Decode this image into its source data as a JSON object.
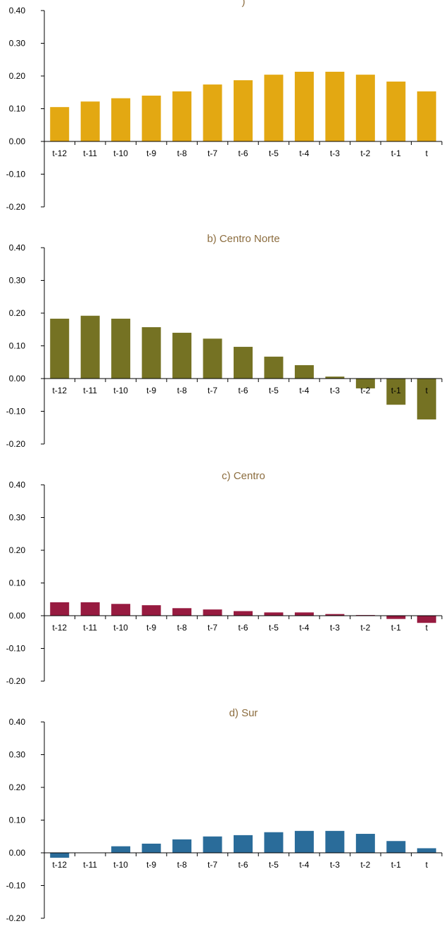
{
  "chart_data": [
    {
      "type": "bar",
      "title": ")",
      "color": "#E3A812",
      "categories": [
        "t-12",
        "t-11",
        "t-10",
        "t-9",
        "t-8",
        "t-7",
        "t-6",
        "t-5",
        "t-4",
        "t-3",
        "t-2",
        "t-1",
        "t"
      ],
      "values": [
        0.105,
        0.122,
        0.132,
        0.14,
        0.153,
        0.174,
        0.187,
        0.204,
        0.213,
        0.213,
        0.204,
        0.183,
        0.153
      ],
      "yticks": [
        "0.40",
        "0.30",
        "0.20",
        "0.10",
        "0.00",
        "-0.10",
        "-0.20"
      ],
      "ylim": [
        -0.2,
        0.4
      ],
      "xlabel": "",
      "ylabel": ""
    },
    {
      "type": "bar",
      "title": "b) Centro Norte",
      "color": "#757223",
      "categories": [
        "t-12",
        "t-11",
        "t-10",
        "t-9",
        "t-8",
        "t-7",
        "t-6",
        "t-5",
        "t-4",
        "t-3",
        "t-2",
        "t-1",
        "t"
      ],
      "values": [
        0.183,
        0.192,
        0.183,
        0.157,
        0.14,
        0.122,
        0.097,
        0.067,
        0.041,
        0.006,
        -0.03,
        -0.08,
        -0.125
      ],
      "yticks": [
        "0.40",
        "0.30",
        "0.20",
        "0.10",
        "0.00",
        "-0.10",
        "-0.20"
      ],
      "ylim": [
        -0.2,
        0.4
      ],
      "xlabel": "",
      "ylabel": ""
    },
    {
      "type": "bar",
      "title": "c) Centro",
      "color": "#971B40",
      "categories": [
        "t-12",
        "t-11",
        "t-10",
        "t-9",
        "t-8",
        "t-7",
        "t-6",
        "t-5",
        "t-4",
        "t-3",
        "t-2",
        "t-1",
        "t"
      ],
      "values": [
        0.041,
        0.041,
        0.036,
        0.032,
        0.023,
        0.019,
        0.014,
        0.01,
        0.01,
        0.005,
        0.002,
        -0.01,
        -0.022
      ],
      "yticks": [
        "0.40",
        "0.30",
        "0.20",
        "0.10",
        "0.00",
        "-0.10",
        "-0.20"
      ],
      "ylim": [
        -0.2,
        0.4
      ],
      "xlabel": "",
      "ylabel": ""
    },
    {
      "type": "bar",
      "title": "d) Sur",
      "color": "#2A6C9A",
      "categories": [
        "t-12",
        "t-11",
        "t-10",
        "t-9",
        "t-8",
        "t-7",
        "t-6",
        "t-5",
        "t-4",
        "t-3",
        "t-2",
        "t-1",
        "t"
      ],
      "values": [
        -0.015,
        0.0,
        0.02,
        0.028,
        0.041,
        0.05,
        0.054,
        0.063,
        0.067,
        0.067,
        0.058,
        0.036,
        0.014
      ],
      "yticks": [
        "0.40",
        "0.30",
        "0.20",
        "0.10",
        "0.00",
        "-0.10",
        "-0.20"
      ],
      "ylim": [
        -0.2,
        0.4
      ],
      "xlabel": "",
      "ylabel": ""
    }
  ]
}
